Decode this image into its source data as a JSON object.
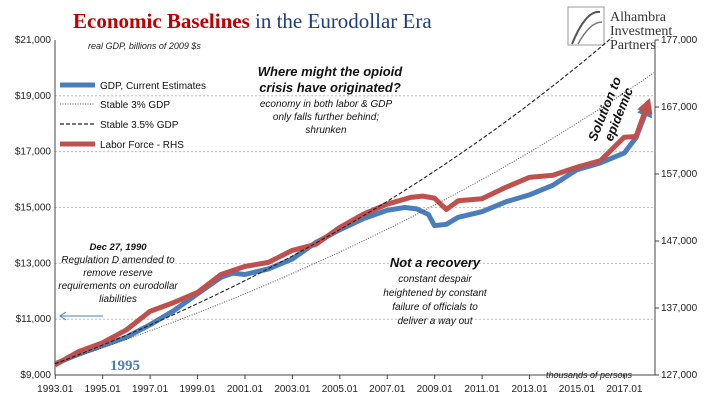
{
  "title": {
    "part1": "Economic Baselines",
    "part2": " in the Eurodollar Era",
    "color1": "#c00000",
    "color2": "#1f3d7a"
  },
  "logo": {
    "line1": "Alhambra",
    "line2": "Investment",
    "line3": "Partners",
    "icon": "alhambra-arch-icon"
  },
  "colors": {
    "gdp": "#4a7ebb",
    "labor": "#c0504d",
    "stable3": "#555555",
    "stable35": "#222222",
    "grid": "#b0b0b0",
    "annotation_arrow": "#4a7ebb",
    "year_label": "#4a7ebb"
  },
  "annotations": {
    "left_date": "Dec 27, 1990",
    "left_text": [
      "Regulation D amended to",
      "remove reserve",
      "requirements on eurodollar",
      "liabilities"
    ],
    "opioid_title": [
      "Where might the opioid",
      "crisis have originated?"
    ],
    "opioid_text": [
      "economy in both labor & GDP",
      "only falls further behind;",
      "shrunken"
    ],
    "recovery_title": "Not a recovery",
    "recovery_text": [
      "constant despair",
      "heightened by constant",
      "failure of officials to",
      "deliver a way out"
    ],
    "solution": [
      "Solution to",
      "epidemic"
    ],
    "year_1995": "1995",
    "thousands": "thousands of persons"
  },
  "chart_data": {
    "type": "line",
    "subtitle": "real GDP, billions of 2009 $s",
    "x_ticks": [
      "1993.01",
      "1995.01",
      "1997.01",
      "1999.01",
      "2001.01",
      "2003.01",
      "2005.01",
      "2007.01",
      "2009.01",
      "2011.01",
      "2013.01",
      "2015.01",
      "2017.01"
    ],
    "xlim": [
      1993.0,
      2018.3
    ],
    "y_left": {
      "ticks": [
        "$9,000",
        "$11,000",
        "$13,000",
        "$15,000",
        "$17,000",
        "$19,000",
        "$21,000"
      ],
      "lim": [
        9000,
        21000
      ]
    },
    "y_right": {
      "ticks": [
        "127,000",
        "137,000",
        "147,000",
        "157,000",
        "167,000",
        "177,000"
      ],
      "lim": [
        127000,
        177000
      ]
    },
    "legend": [
      "GDP, Current Estimates",
      "Stable 3% GDP",
      "Stable 3.5% GDP",
      "Labor Force - RHS"
    ],
    "series": [
      {
        "name": "GDP, Current Estimates",
        "axis": "left",
        "x": [
          1993.0,
          1994.0,
          1995.0,
          1996.0,
          1997.0,
          1998.0,
          1999.0,
          2000.0,
          2000.5,
          2001.0,
          2002.0,
          2003.0,
          2004.0,
          2005.0,
          2006.0,
          2007.0,
          2007.75,
          2008.25,
          2008.75,
          2009.0,
          2009.5,
          2010.0,
          2011.0,
          2012.0,
          2013.0,
          2014.0,
          2015.0,
          2016.0,
          2017.0,
          2017.5,
          2018.0
        ],
        "y": [
          9400,
          9750,
          10050,
          10350,
          10800,
          11300,
          11900,
          12500,
          12650,
          12600,
          12800,
          13150,
          13750,
          14200,
          14600,
          14900,
          15000,
          14950,
          14750,
          14350,
          14400,
          14650,
          14850,
          15200,
          15450,
          15800,
          16350,
          16600,
          16950,
          17500,
          18600
        ]
      },
      {
        "name": "Labor Force - RHS",
        "axis": "right",
        "x": [
          1993.0,
          1994.0,
          1995.0,
          1996.0,
          1997.0,
          1998.0,
          1999.0,
          2000.0,
          2001.0,
          2002.0,
          2003.0,
          2004.0,
          2005.0,
          2006.0,
          2007.0,
          2008.0,
          2008.5,
          2009.0,
          2009.5,
          2010.0,
          2011.0,
          2012.0,
          2013.0,
          2014.0,
          2015.0,
          2016.0,
          2017.0,
          2017.5,
          2018.0
        ],
        "y": [
          128500,
          130500,
          131800,
          133700,
          136500,
          137800,
          139300,
          142000,
          143200,
          143800,
          145600,
          146500,
          149000,
          151000,
          152500,
          153500,
          153700,
          153400,
          151700,
          153000,
          153300,
          155000,
          156500,
          156800,
          158000,
          159000,
          162500,
          162600,
          167500
        ]
      },
      {
        "name": "Stable 3% GDP",
        "axis": "left",
        "growth": 0.03,
        "base_x": 1993.0,
        "base_y": 9400,
        "x_end": 2018.3
      },
      {
        "name": "Stable 3.5% GDP",
        "axis": "left",
        "growth": 0.035,
        "base_x": 1993.0,
        "base_y": 9400,
        "x_end": 2018.3
      }
    ],
    "grid": true,
    "legend_position": "top-left"
  }
}
